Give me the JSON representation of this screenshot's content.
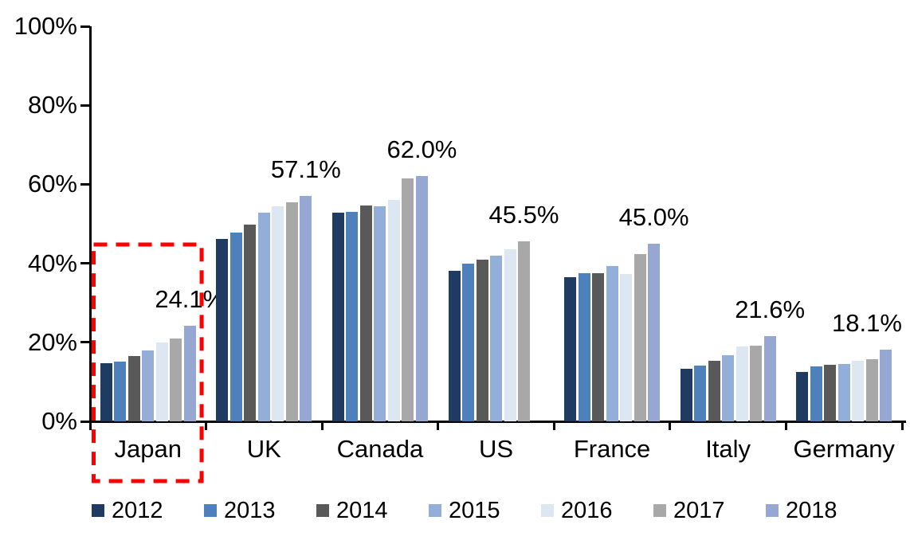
{
  "chart_data": {
    "type": "bar",
    "title": "",
    "categories": [
      "Japan",
      "UK",
      "Canada",
      "US",
      "France",
      "Italy",
      "Germany"
    ],
    "series": [
      {
        "name": "2012",
        "color": "#1F3B61",
        "values": [
          14.7,
          46.2,
          52.8,
          38.2,
          36.5,
          13.3,
          12.5
        ]
      },
      {
        "name": "2013",
        "color": "#4E80BC",
        "values": [
          15.1,
          47.8,
          53.1,
          40.0,
          37.6,
          14.2,
          13.9
        ]
      },
      {
        "name": "2014",
        "color": "#595959",
        "values": [
          16.5,
          49.8,
          54.7,
          40.9,
          37.6,
          15.4,
          14.3
        ]
      },
      {
        "name": "2015",
        "color": "#93AFD9",
        "values": [
          18.0,
          52.9,
          54.4,
          42.0,
          39.3,
          16.8,
          14.6
        ]
      },
      {
        "name": "2016",
        "color": "#DDE7F2",
        "values": [
          19.9,
          54.4,
          56.0,
          43.5,
          37.2,
          18.9,
          15.4
        ]
      },
      {
        "name": "2017",
        "color": "#A8A8A8",
        "values": [
          21.0,
          55.4,
          61.4,
          45.5,
          42.3,
          19.2,
          15.8
        ]
      },
      {
        "name": "2018",
        "color": "#97A7D3",
        "values": [
          24.1,
          57.1,
          62.0,
          null,
          45.0,
          21.6,
          18.1
        ]
      }
    ],
    "annotations": [
      {
        "category": "Japan",
        "text": "24.1%"
      },
      {
        "category": "UK",
        "text": "57.1%"
      },
      {
        "category": "Canada",
        "text": "62.0%"
      },
      {
        "category": "US",
        "text": "45.5%"
      },
      {
        "category": "France",
        "text": "45.0%"
      },
      {
        "category": "Italy",
        "text": "21.6%"
      },
      {
        "category": "Germany",
        "text": "18.1%"
      }
    ],
    "y_axis": {
      "min": 0,
      "max": 100,
      "ticks": [
        {
          "label": "0%",
          "value": 0
        },
        {
          "label": "20%",
          "value": 20
        },
        {
          "label": "40%",
          "value": 40
        },
        {
          "label": "60%",
          "value": 60
        },
        {
          "label": "80%",
          "value": 80
        },
        {
          "label": "100%",
          "value": 100
        }
      ],
      "grid": false
    },
    "legend_position": "bottom",
    "highlight": {
      "category": "Japan",
      "color": "#FF0000",
      "style": "dashed"
    }
  }
}
